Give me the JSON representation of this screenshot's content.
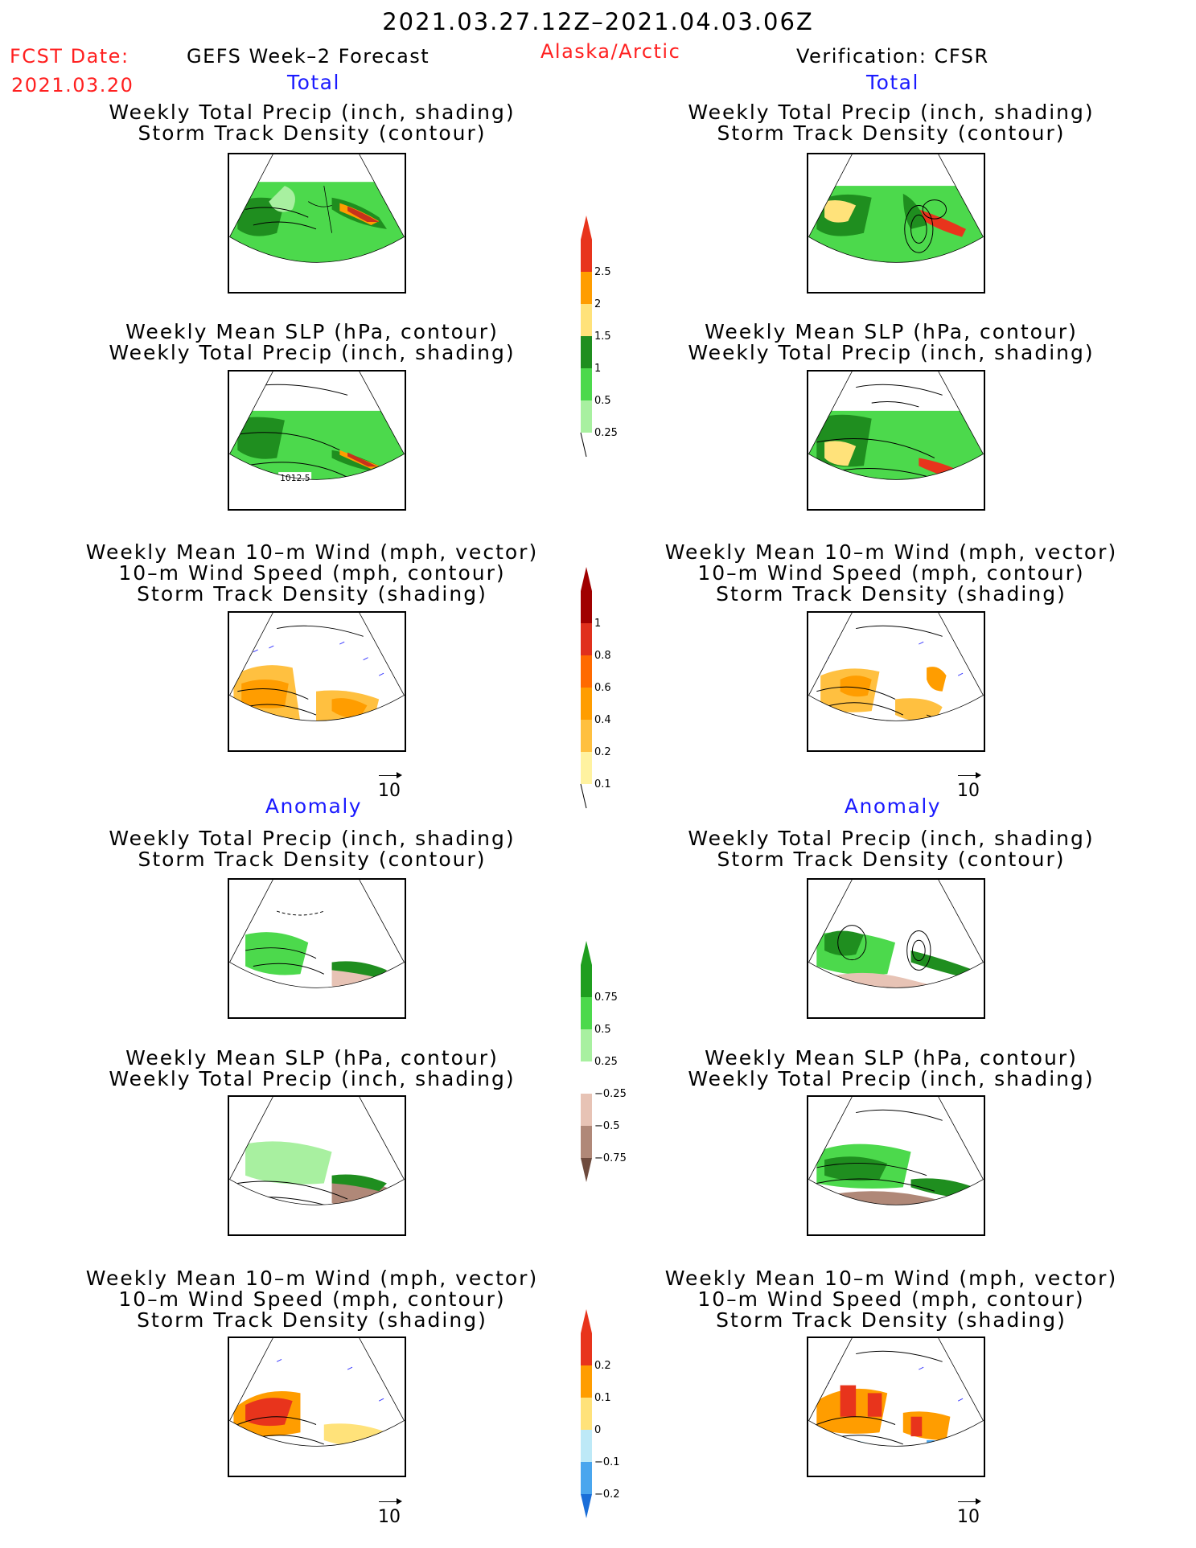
{
  "date_range": "2021.03.27.12Z–2021.04.03.06Z",
  "fcst_label": "FCST Date:",
  "fcst_date": "2021.03.20",
  "forecast_title": "GEFS Week–2 Forecast",
  "region": "Alaska/Arctic",
  "verification": "Verification: CFSR",
  "sections": {
    "total_left": "Total",
    "total_right": "Total",
    "anomaly_left": "Anomaly",
    "anomaly_right": "Anomaly"
  },
  "panel_titles": {
    "precip_storm": [
      "Weekly Total Precip (inch, shading)",
      "Storm Track Density (contour)"
    ],
    "slp_precip": [
      "Weekly Mean SLP (hPa, contour)",
      "Weekly Total Precip (inch, shading)"
    ],
    "wind_storm": [
      "Weekly Mean 10–m Wind (mph, vector)",
      "10–m Wind Speed (mph, contour)",
      "Storm Track Density (shading)"
    ]
  },
  "slp_contour_label": "1012.5",
  "vector_ref": "10",
  "colorbars": {
    "precip_total": {
      "labels": [
        "2.5",
        "2",
        "1.5",
        "1",
        "0.5",
        "0.25"
      ],
      "colors": [
        "#e8341c",
        "#ff9d00",
        "#ffe27a",
        "#1f8e1f",
        "#4cd94c",
        "#a8f0a0"
      ]
    },
    "storm_total": {
      "labels": [
        "1",
        "0.8",
        "0.6",
        "0.4",
        "0.2",
        "0.1"
      ],
      "colors": [
        "#a00000",
        "#e0301c",
        "#ff6a00",
        "#ff9d00",
        "#ffc040",
        "#fff2a0"
      ]
    },
    "precip_anom": {
      "labels": [
        "0.75",
        "0.5",
        "0.25",
        "−0.25",
        "−0.5",
        "−0.75"
      ],
      "colors": [
        "#1f9e1f",
        "#4cd94c",
        "#a8f0a0",
        "#ffffff",
        "#e7c3b5",
        "#b08878",
        "#6e4b3e"
      ]
    },
    "storm_anom": {
      "labels": [
        "0.2",
        "0.1",
        "0",
        "−0.1",
        "−0.2"
      ],
      "colors": [
        "#e8341c",
        "#ff9d00",
        "#ffe27a",
        "#bde9f7",
        "#4aa6ee",
        "#1a6ed8"
      ]
    }
  }
}
